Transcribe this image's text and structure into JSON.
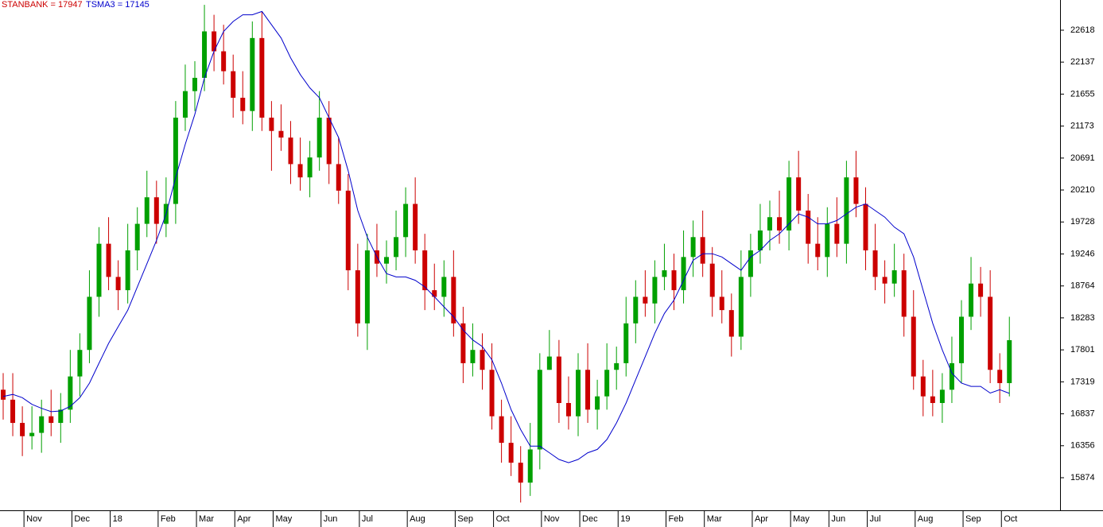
{
  "chart_data": {
    "type": "candlestick",
    "categories": [
      null,
      null,
      null,
      "Nov",
      null,
      null,
      null,
      null,
      "Dec",
      null,
      null,
      null,
      "18",
      null,
      null,
      null,
      null,
      "Feb",
      null,
      null,
      null,
      "Mar",
      null,
      null,
      null,
      "Apr",
      null,
      null,
      null,
      "May",
      null,
      null,
      null,
      null,
      "Jun",
      null,
      null,
      null,
      "Jul",
      null,
      null,
      null,
      null,
      "Aug",
      null,
      null,
      null,
      null,
      "Sep",
      null,
      null,
      null,
      "Oct",
      null,
      null,
      null,
      null,
      "Nov",
      null,
      null,
      null,
      "Dec",
      null,
      null,
      null,
      "19",
      null,
      null,
      null,
      null,
      "Feb",
      null,
      null,
      null,
      "Mar",
      null,
      null,
      null,
      null,
      "Apr",
      null,
      null,
      null,
      "May",
      null,
      null,
      null,
      "Jun",
      null,
      null,
      null,
      "Jul",
      null,
      null,
      null,
      null,
      "Aug",
      null,
      null,
      null,
      null,
      "Sep",
      null,
      null,
      null,
      "Oct"
    ],
    "series": [
      {
        "name": "STANBANK = 17947",
        "color": "#cc0000",
        "up_color": "#00a000",
        "open": [
          17200,
          17050,
          16700,
          16500,
          16550,
          16800,
          16700,
          16900,
          17400,
          17800,
          18600,
          19400,
          18900,
          18700,
          19300,
          19700,
          20100,
          19700,
          20000,
          21300,
          21700,
          21900,
          22600,
          22300,
          22000,
          21600,
          21400,
          22500,
          21300,
          21100,
          21000,
          20600,
          20400,
          20700,
          21300,
          20600,
          20200,
          19000,
          18200,
          19300,
          19100,
          19200,
          19500,
          20000,
          19300,
          18700,
          18600,
          18900,
          18200,
          17600,
          17800,
          17500,
          16800,
          16400,
          16100,
          15800,
          16300,
          17500,
          17700,
          17000,
          16800,
          17500,
          16900,
          17100,
          17500,
          17600,
          18200,
          18600,
          18500,
          18900,
          19000,
          18700,
          19200,
          19500,
          19100,
          18600,
          18400,
          18000,
          18900,
          19300,
          19600,
          19800,
          19600,
          20400,
          19900,
          19400,
          19200,
          19700,
          19400,
          20400,
          20000,
          19300,
          18900,
          18800,
          19000,
          18300,
          17400,
          17100,
          17000,
          17200,
          17600,
          18300,
          18800,
          18600,
          17500,
          17300
        ],
        "high": [
          17450,
          17450,
          16950,
          16950,
          17050,
          17200,
          17150,
          17800,
          18050,
          19000,
          19650,
          19800,
          19150,
          19700,
          19950,
          20500,
          20350,
          20400,
          21550,
          22100,
          22150,
          23000,
          22850,
          22700,
          22250,
          22000,
          22750,
          22900,
          21550,
          21500,
          21250,
          21000,
          20950,
          21700,
          21550,
          21000,
          20450,
          19400,
          19550,
          19700,
          19450,
          19900,
          20250,
          20400,
          19550,
          19100,
          19150,
          19300,
          18450,
          18200,
          18050,
          17900,
          17050,
          16800,
          16350,
          16700,
          17750,
          18100,
          17950,
          17400,
          17750,
          17900,
          17350,
          17900,
          17850,
          18600,
          18850,
          19000,
          19150,
          19400,
          19250,
          19600,
          19750,
          19900,
          19350,
          19000,
          18650,
          19300,
          19550,
          20000,
          20050,
          20200,
          20650,
          20800,
          20150,
          19800,
          19950,
          20100,
          20650,
          20800,
          20250,
          19700,
          19150,
          19400,
          19250,
          18700,
          17650,
          17500,
          17450,
          18000,
          18550,
          19200,
          19050,
          19000,
          17750,
          18300
        ],
        "low": [
          16750,
          16500,
          16200,
          16300,
          16250,
          16500,
          16400,
          16700,
          17100,
          17600,
          18300,
          18700,
          18400,
          18500,
          19000,
          19500,
          19400,
          19500,
          19700,
          21100,
          21400,
          21700,
          22000,
          21800,
          21300,
          21200,
          21100,
          21100,
          20500,
          20800,
          20300,
          20200,
          20100,
          20500,
          20300,
          20000,
          18700,
          18000,
          17800,
          18900,
          18800,
          19000,
          19200,
          19100,
          18400,
          18400,
          18300,
          18000,
          17300,
          17400,
          17200,
          16600,
          16100,
          15900,
          15500,
          15600,
          16000,
          17500,
          16700,
          16600,
          16500,
          16700,
          16600,
          16900,
          17200,
          17400,
          17900,
          18300,
          18200,
          18700,
          18400,
          18500,
          18900,
          18900,
          18300,
          18200,
          17700,
          17800,
          18600,
          19100,
          19300,
          19400,
          19300,
          19700,
          19100,
          19000,
          18900,
          19200,
          19100,
          19800,
          19000,
          18700,
          18500,
          18600,
          18000,
          17200,
          16800,
          16800,
          16700,
          17000,
          17300,
          18100,
          18300,
          17300,
          17000,
          17100
        ],
        "close": [
          17050,
          16700,
          16500,
          16550,
          16800,
          16700,
          16900,
          17400,
          17800,
          18600,
          19400,
          18900,
          18700,
          19300,
          19700,
          20100,
          19700,
          20000,
          21300,
          21700,
          21900,
          22600,
          22300,
          22000,
          21600,
          21400,
          22500,
          21300,
          21100,
          21000,
          20600,
          20400,
          20700,
          21300,
          20600,
          20200,
          19000,
          18200,
          19300,
          19100,
          19200,
          19500,
          20000,
          19300,
          18700,
          18600,
          18900,
          18200,
          17600,
          17800,
          17500,
          16800,
          16400,
          16100,
          15800,
          16300,
          17500,
          17700,
          17000,
          16800,
          17500,
          16900,
          17100,
          17500,
          17600,
          18200,
          18600,
          18500,
          18900,
          19000,
          18700,
          19200,
          19500,
          19100,
          18600,
          18400,
          18000,
          18900,
          19300,
          19600,
          19800,
          19600,
          20400,
          19900,
          19400,
          19200,
          19700,
          19400,
          20400,
          20000,
          19300,
          18900,
          18800,
          19000,
          18300,
          17400,
          17100,
          17000,
          17200,
          17600,
          18300,
          18800,
          18600,
          17500,
          17300,
          17947
        ]
      },
      {
        "name": "TSMA3 = 17145",
        "color": "#0000cc",
        "values": [
          17100,
          17130,
          17080,
          16980,
          16920,
          16870,
          16880,
          16950,
          17080,
          17300,
          17600,
          17900,
          18150,
          18400,
          18750,
          19100,
          19450,
          19850,
          20400,
          20900,
          21350,
          21900,
          22300,
          22600,
          22750,
          22850,
          22850,
          22900,
          22700,
          22500,
          22200,
          21950,
          21750,
          21600,
          21300,
          21000,
          20500,
          19900,
          19500,
          19200,
          18950,
          18900,
          18900,
          18850,
          18750,
          18600,
          18450,
          18300,
          18100,
          17950,
          17850,
          17650,
          17300,
          16900,
          16600,
          16350,
          16350,
          16250,
          16150,
          16100,
          16150,
          16250,
          16300,
          16450,
          16700,
          17000,
          17350,
          17700,
          18050,
          18350,
          18550,
          18850,
          19150,
          19250,
          19250,
          19200,
          19100,
          19000,
          19200,
          19300,
          19450,
          19550,
          19700,
          19850,
          19800,
          19700,
          19700,
          19750,
          19850,
          19950,
          20000,
          19900,
          19800,
          19650,
          19550,
          19200,
          18700,
          18200,
          17800,
          17450,
          17300,
          17250,
          17250,
          17150,
          17200,
          17145
        ]
      }
    ],
    "ylim": [
      15383,
      23073
    ],
    "yticks": [
      15874,
      16356,
      16837,
      17319,
      17801,
      18283,
      18764,
      19246,
      19728,
      20210,
      20691,
      21173,
      21655,
      22137,
      22618
    ]
  }
}
